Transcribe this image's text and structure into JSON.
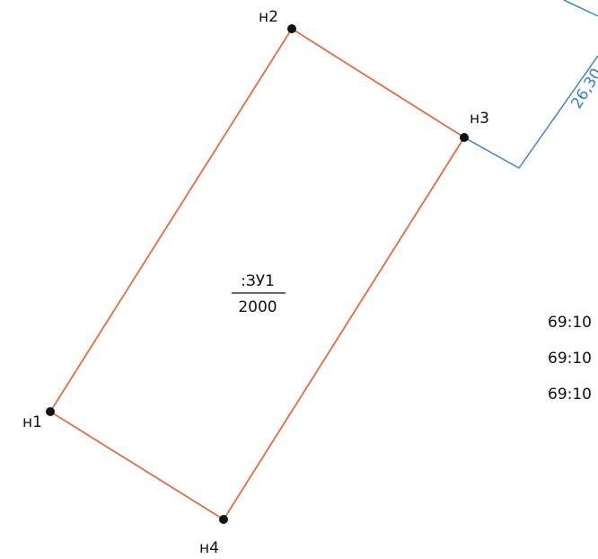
{
  "points": [
    {
      "label": "н1"
    },
    {
      "label": "н2"
    },
    {
      "label": "н3"
    },
    {
      "label": "н4"
    }
  ],
  "plot": {
    "label": ":ЗУ1",
    "area": "2000"
  },
  "dimension": "26,30",
  "cadastral_numbers": [
    "69:10",
    "69:10",
    "69:10"
  ]
}
